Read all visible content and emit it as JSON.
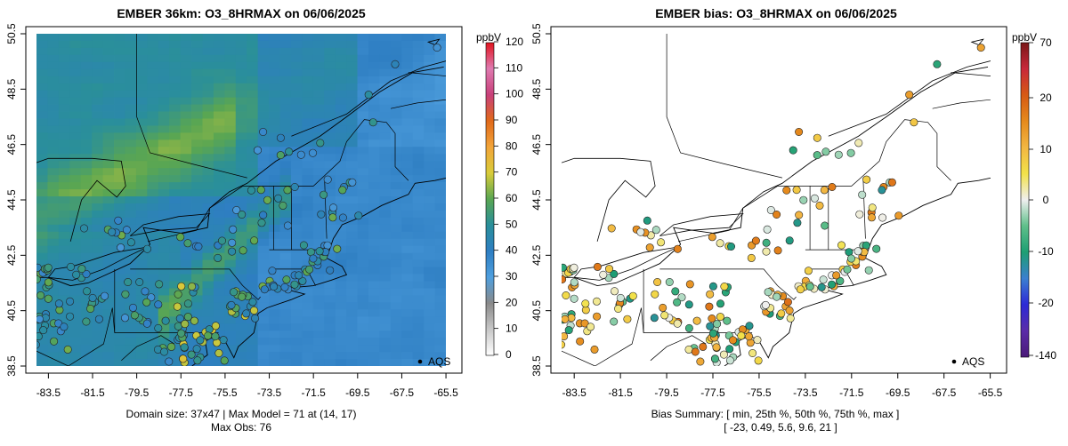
{
  "chart_data": [
    {
      "type": "heatmap",
      "title": "EMBER 36km: O3_8HRMAX on 06/06/2025",
      "variable": "O3_8HRMAX",
      "date": "06/06/2025",
      "units": "ppbV",
      "xlim": [
        -84.2,
        -65.1
      ],
      "ylim": [
        38.5,
        50.5
      ],
      "x_ticks": [
        "-83.5",
        "-81.5",
        "-79.5",
        "-77.5",
        "-75.5",
        "-73.5",
        "-71.5",
        "-69.5",
        "-67.5",
        "-65.5"
      ],
      "y_ticks": [
        "38.5",
        "40.5",
        "42.5",
        "44.5",
        "46.5",
        "48.5",
        "50.5"
      ],
      "colorbar": {
        "min": 0,
        "max": 120,
        "ticks": [
          "0",
          "10",
          "20",
          "30",
          "40",
          "50",
          "60",
          "70",
          "80",
          "90",
          "100",
          "110",
          "120"
        ],
        "colors": [
          "#ffffff",
          "#bdbdbd",
          "#7f7f7f",
          "#4a90d9",
          "#2166ac",
          "#2a9d8f",
          "#4dac26",
          "#e6c229",
          "#fdae61",
          "#e66101",
          "#c51b7d",
          "#de77ae",
          "#d7191c"
        ]
      },
      "legend_label": "AQS",
      "footer_line1": "Domain size: 37x47 | Max Model = 71 at (14, 17)",
      "footer_line2": "Max Obs: 76",
      "domain_size": "37x47",
      "max_model": 71,
      "max_model_cell": [
        14,
        17
      ],
      "max_obs": 76
    },
    {
      "type": "scatter",
      "title": "EMBER bias: O3_8HRMAX on 06/06/2025",
      "variable": "O3_8HRMAX",
      "date": "06/06/2025",
      "units": "ppbV",
      "xlim": [
        -84.2,
        -65.1
      ],
      "ylim": [
        38.5,
        50.5
      ],
      "x_ticks": [
        "-83.5",
        "-81.5",
        "-79.5",
        "-77.5",
        "-75.5",
        "-73.5",
        "-71.5",
        "-69.5",
        "-67.5",
        "-65.5"
      ],
      "y_ticks": [
        "38.5",
        "40.5",
        "42.5",
        "44.5",
        "46.5",
        "48.5",
        "50.5"
      ],
      "colorbar": {
        "ticks": [
          "70",
          "20",
          "10",
          "0",
          "-10",
          "-20",
          "-140"
        ],
        "colors": [
          "#8b1a1a",
          "#d7301f",
          "#e6550d",
          "#fdae61",
          "#f0e442",
          "#f0f0f0",
          "#66c2a4",
          "#1b9e77",
          "#238b45",
          "#3a5fcd",
          "#2b2bd9",
          "#6a3d9a",
          "#4b0082"
        ]
      },
      "legend_label": "AQS",
      "footer_line1": "Bias Summary: [ min, 25th %, 50th %, 75th %, max ]",
      "footer_line2": "[ -23,   0.49,   5.6,   9.6,   21 ]",
      "bias_summary": {
        "min": -23,
        "p25": 0.49,
        "p50": 5.6,
        "p75": 9.6,
        "max": 21
      }
    }
  ]
}
